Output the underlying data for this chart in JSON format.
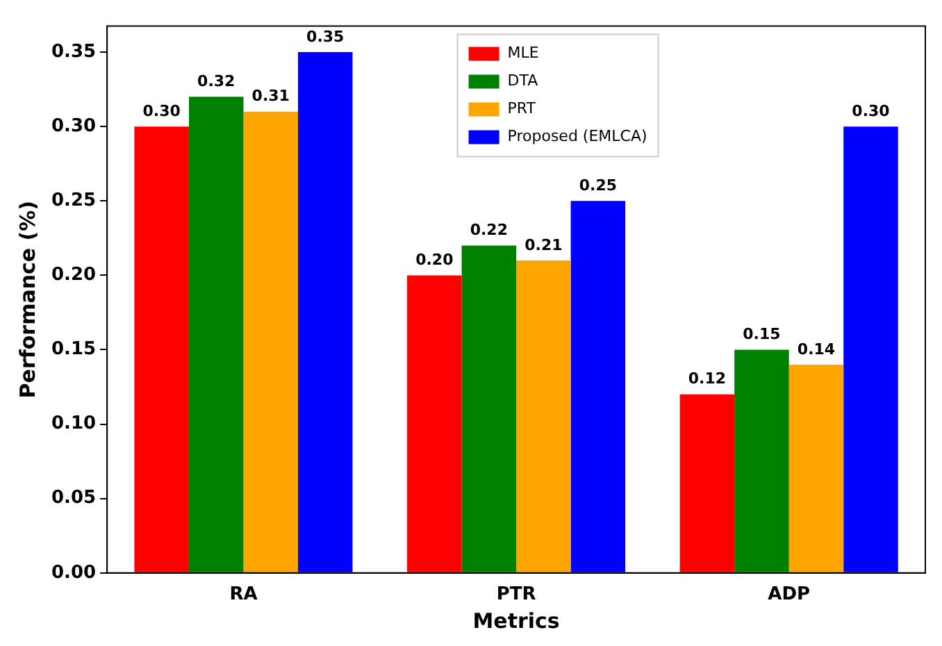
{
  "chart_data": {
    "type": "bar",
    "xlabel": "Metrics",
    "ylabel": "Performance (%)",
    "categories": [
      "RA",
      "PTR",
      "ADP"
    ],
    "series": [
      {
        "name": "MLE",
        "color": "#ff0000",
        "values": [
          0.3,
          0.2,
          0.12
        ],
        "value_labels": [
          "0.30",
          "0.20",
          "0.12"
        ]
      },
      {
        "name": "DTA",
        "color": "#008000",
        "values": [
          0.32,
          0.22,
          0.15
        ],
        "value_labels": [
          "0.32",
          "0.22",
          "0.15"
        ]
      },
      {
        "name": "PRT",
        "color": "#ffa500",
        "values": [
          0.31,
          0.21,
          0.14
        ],
        "value_labels": [
          "0.31",
          "0.21",
          "0.14"
        ]
      },
      {
        "name": "Proposed (EMLCA)",
        "color": "#0000ff",
        "values": [
          0.35,
          0.25,
          0.3
        ],
        "value_labels": [
          "0.35",
          "0.25",
          "0.30"
        ]
      }
    ],
    "ylim": [
      0,
      0.3675
    ],
    "yticks": [
      {
        "value": 0,
        "label": "0.00"
      },
      {
        "value": 0.05,
        "label": "0.05"
      },
      {
        "value": 0.1,
        "label": "0.10"
      },
      {
        "value": 0.15,
        "label": "0.15"
      },
      {
        "value": 0.2,
        "label": "0.20"
      },
      {
        "value": 0.25,
        "label": "0.25"
      },
      {
        "value": 0.3,
        "label": "0.30"
      },
      {
        "value": 0.35,
        "label": "0.35"
      }
    ],
    "grid": false,
    "legend": "top"
  }
}
